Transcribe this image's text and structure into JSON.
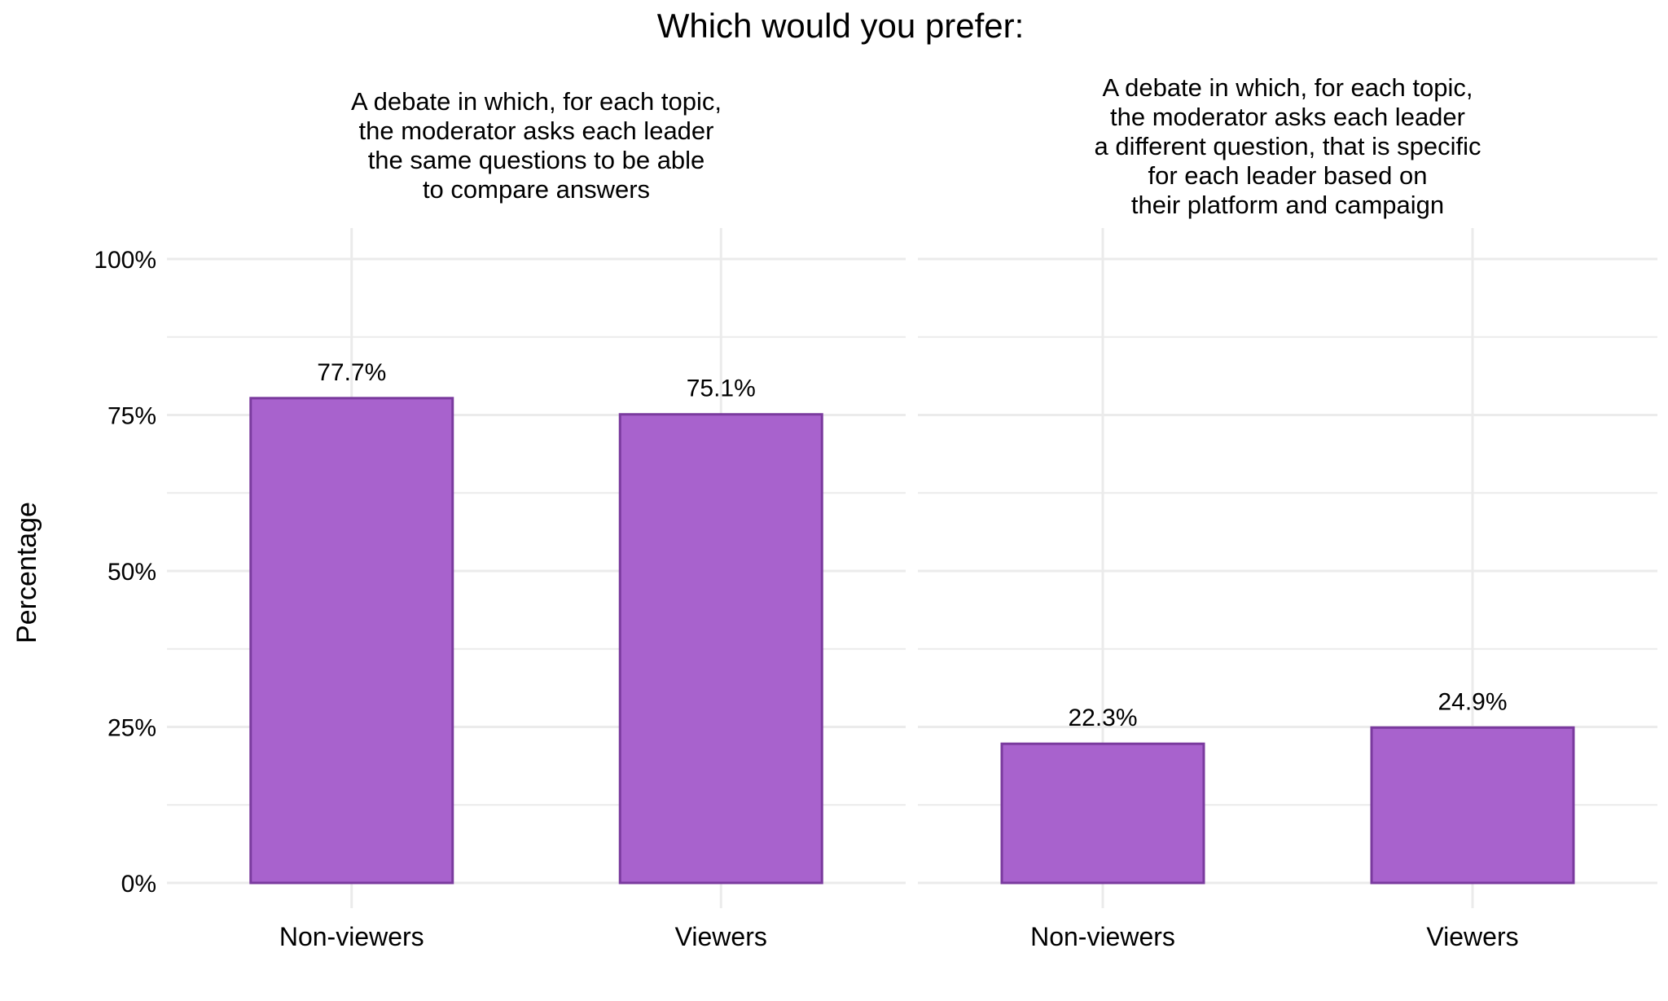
{
  "chart_data": {
    "type": "bar",
    "title": "Which would you prefer:",
    "ylabel": "Percentage",
    "ylim": [
      0,
      100
    ],
    "yticks": [
      0,
      25,
      50,
      75,
      100
    ],
    "ytick_labels": [
      "0%",
      "25%",
      "50%",
      "75%",
      "100%"
    ],
    "grid": true,
    "legend": "none",
    "colors": {
      "bar_fill": "#A862CD",
      "bar_stroke": "#7A3A9E",
      "grid": "#EBEBEB"
    },
    "categories": [
      "Non-viewers",
      "Viewers"
    ],
    "panels": [
      {
        "title_lines": [
          "A debate in which, for each topic,",
          "the moderator asks each leader",
          "the same questions to be able",
          "to compare answers"
        ],
        "values": [
          77.7,
          75.1
        ],
        "labels": [
          "77.7%",
          "75.1%"
        ]
      },
      {
        "title_lines": [
          "A debate in which, for each topic,",
          "the moderator asks each leader",
          "a different question, that is specific",
          "for each leader based on",
          "their platform and campaign"
        ],
        "values": [
          22.3,
          24.9
        ],
        "labels": [
          "22.3%",
          "24.9%"
        ]
      }
    ]
  }
}
